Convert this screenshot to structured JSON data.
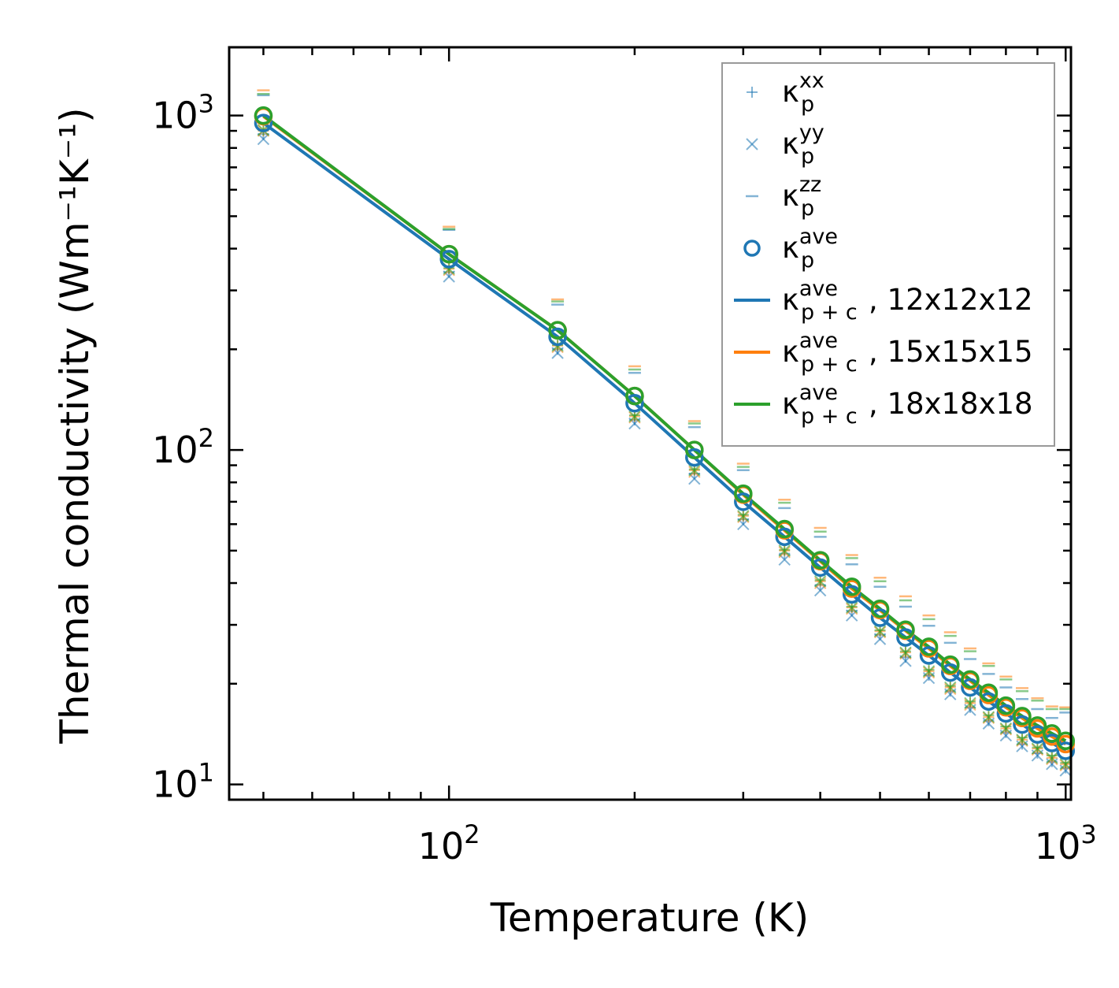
{
  "chart_data": {
    "type": "line",
    "xscale": "log",
    "yscale": "log",
    "xlabel": "Temperature (K)",
    "ylabel": "Thermal conductivity (Wm⁻¹K⁻¹)",
    "xlim": [
      44,
      1020
    ],
    "ylim": [
      9.0,
      1600
    ],
    "x_ticks": [
      {
        "base": "10",
        "exp": "2",
        "value": 100
      },
      {
        "base": "10",
        "exp": "3",
        "value": 1000
      }
    ],
    "y_ticks": [
      {
        "base": "10",
        "exp": "1",
        "value": 10
      },
      {
        "base": "10",
        "exp": "2",
        "value": 100
      },
      {
        "base": "10",
        "exp": "3",
        "value": 1000
      }
    ],
    "legend_position": "top-right",
    "colors": {
      "blue": "#1f77b4",
      "orange": "#ff7f0e",
      "green": "#2ca02c"
    },
    "x": [
      50,
      100,
      150,
      200,
      250,
      300,
      350,
      400,
      450,
      500,
      550,
      600,
      650,
      700,
      750,
      800,
      850,
      900,
      950,
      1000
    ],
    "series": [
      {
        "name": "12x12x12",
        "legend_suffix": ", 12x12x12",
        "color": "#1f77b4",
        "kxx": [
          880,
          340,
          200,
          123,
          85,
          62,
          49,
          39.5,
          33,
          28,
          24,
          21.2,
          19,
          17,
          15.5,
          14.3,
          13.2,
          12.4,
          11.7,
          11.2
        ],
        "kyy": [
          850,
          330,
          195,
          120,
          82,
          60,
          47,
          38,
          32,
          27.2,
          23.4,
          20.8,
          18.6,
          16.7,
          15.2,
          14.0,
          13.0,
          12.2,
          11.5,
          11.0
        ],
        "kzz": [
          1150,
          455,
          272,
          170,
          117,
          87,
          67,
          55,
          45.5,
          39,
          34,
          29.8,
          26.5,
          23.7,
          21.4,
          19.5,
          18.0,
          16.8,
          15.8,
          16.4
        ],
        "kave": [
          950,
          372,
          218,
          138,
          95,
          70,
          55,
          44.5,
          37,
          31.5,
          27.5,
          24.3,
          21.6,
          19.5,
          17.7,
          16.3,
          15.1,
          14.1,
          13.3,
          12.6
        ],
        "kpc": [
          950,
          372,
          218,
          138,
          95,
          70,
          55,
          44.5,
          37,
          31.5,
          27.5,
          24.3,
          21.6,
          19.5,
          17.7,
          16.3,
          15.1,
          14.1,
          13.3,
          12.6
        ]
      },
      {
        "name": "15x15x15",
        "legend_suffix": ", 15x15x15",
        "color": "#ff7f0e",
        "kxx": [
          900,
          348,
          205,
          126,
          87,
          63.5,
          50,
          40.5,
          33.8,
          28.7,
          24.8,
          21.8,
          19.5,
          17.5,
          15.9,
          14.7,
          13.6,
          12.8,
          12.0,
          11.5
        ],
        "kyy": [
          900,
          345,
          203,
          125,
          86,
          63,
          49.5,
          40,
          33.5,
          28.5,
          24.6,
          21.6,
          19.3,
          17.3,
          15.8,
          14.6,
          13.5,
          12.7,
          11.9,
          11.4
        ],
        "kzz": [
          1190,
          465,
          282,
          178,
          122,
          91,
          71,
          58.5,
          48.5,
          41.5,
          36.5,
          32,
          28.5,
          25.5,
          23,
          21,
          19.4,
          18.1,
          17.1,
          17.0
        ],
        "kave": [
          995,
          385,
          228,
          145,
          100,
          73.5,
          57.5,
          46.5,
          38.5,
          33.2,
          28.8,
          25.5,
          22.6,
          20.4,
          18.5,
          17.0,
          15.8,
          14.7,
          13.9,
          13.2
        ],
        "kpc": [
          995,
          385,
          228,
          145,
          100,
          73.5,
          57.5,
          46.5,
          38.5,
          33.2,
          28.8,
          25.5,
          22.6,
          20.4,
          18.5,
          17.0,
          15.8,
          14.7,
          13.9,
          13.2
        ]
      },
      {
        "name": "18x18x18",
        "legend_suffix": ", 18x18x18",
        "color": "#2ca02c",
        "kxx": [
          905,
          350,
          206,
          127,
          87.5,
          64,
          50.3,
          40.8,
          34,
          28.9,
          25,
          22,
          19.7,
          17.7,
          16.1,
          14.9,
          13.8,
          12.9,
          12.2,
          11.6
        ],
        "kyy": [
          905,
          348,
          205,
          126,
          87,
          63.5,
          50,
          40.5,
          33.8,
          28.7,
          24.8,
          21.8,
          19.5,
          17.5,
          15.9,
          14.7,
          13.6,
          12.8,
          12.0,
          11.5
        ],
        "kzz": [
          1160,
          458,
          278,
          174,
          120,
          89,
          69.5,
          57,
          47.5,
          40.5,
          35.5,
          31.2,
          27.8,
          25,
          22.6,
          20.6,
          19,
          17.8,
          16.8,
          16.8
        ],
        "kave": [
          1000,
          385,
          228,
          145,
          100,
          74,
          58,
          46.8,
          39,
          33.5,
          29,
          25.8,
          22.8,
          20.6,
          18.8,
          17.2,
          16.0,
          15.0,
          14.2,
          13.5
        ],
        "kpc": [
          1000,
          385,
          228,
          145,
          100,
          74,
          58,
          46.8,
          39,
          33.5,
          29,
          25.8,
          22.8,
          20.6,
          18.8,
          17.2,
          16.0,
          15.0,
          14.2,
          13.5
        ]
      }
    ],
    "legend": [
      {
        "kind": "kxx",
        "kappa": "κ",
        "sub": "p",
        "sup": "xx",
        "suffix": ""
      },
      {
        "kind": "kyy",
        "kappa": "κ",
        "sub": "p",
        "sup": "yy",
        "suffix": ""
      },
      {
        "kind": "kzz",
        "kappa": "κ",
        "sub": "p",
        "sup": "zz",
        "suffix": ""
      },
      {
        "kind": "kave",
        "kappa": "κ",
        "sub": "p",
        "sup": "ave",
        "suffix": ""
      },
      {
        "kind": "line",
        "series": 0,
        "kappa": "κ",
        "sub": "p + c",
        "sup": "ave",
        "suffix": ", 12x12x12"
      },
      {
        "kind": "line",
        "series": 1,
        "kappa": "κ",
        "sub": "p + c",
        "sup": "ave",
        "suffix": ", 15x15x15"
      },
      {
        "kind": "line",
        "series": 2,
        "kappa": "κ",
        "sub": "p + c",
        "sup": "ave",
        "suffix": ", 18x18x18"
      }
    ]
  }
}
